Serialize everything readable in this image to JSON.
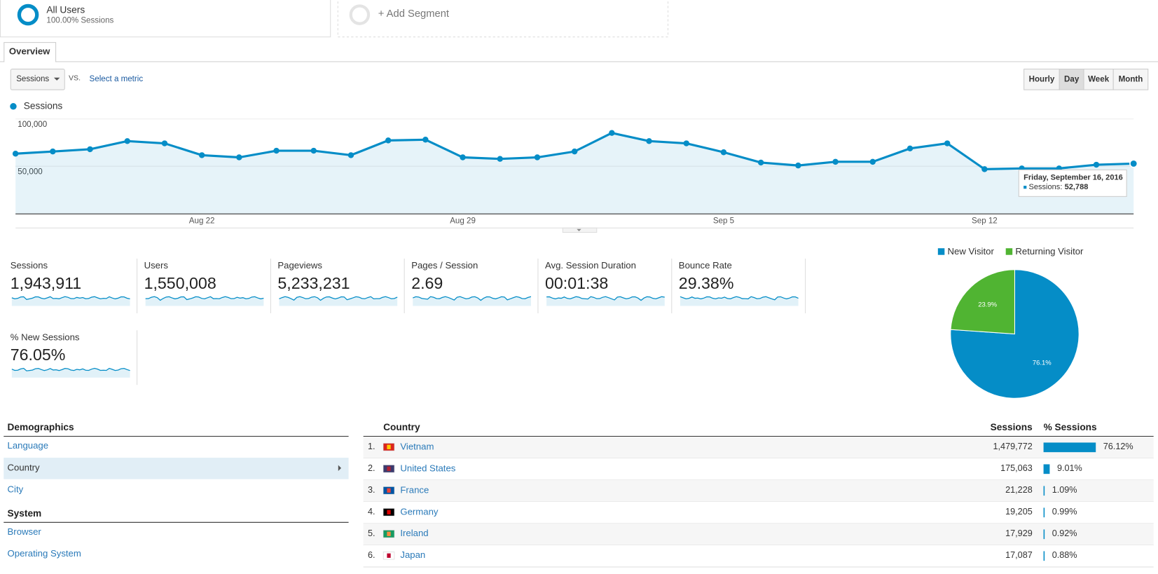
{
  "segments": {
    "primary": {
      "name": "All Users",
      "detail": "100.00% Sessions"
    },
    "add": "+ Add Segment"
  },
  "tab": "Overview",
  "controls": {
    "metric": "Sessions",
    "vs": "VS.",
    "select": "Select a metric",
    "intervals": [
      {
        "label": "Hourly"
      },
      {
        "label": "Day",
        "selected": true
      },
      {
        "label": "Week"
      },
      {
        "label": "Month"
      }
    ]
  },
  "chart_data": [
    {
      "type": "line",
      "legend": "top-left",
      "grid": true,
      "series": [
        {
          "name": "Sessions",
          "color": "#058dc7",
          "values": [
            63300,
            65600,
            68000,
            76600,
            74200,
            61700,
            59400,
            66400,
            66400,
            61700,
            77300,
            78100,
            59400,
            57800,
            59400,
            65600,
            85200,
            76600,
            74200,
            64800,
            53900,
            50800,
            54700,
            54700,
            68800,
            74200,
            46900,
            47700,
            47700,
            51600,
            52788
          ]
        }
      ],
      "categories": [
        null,
        null,
        null,
        null,
        null,
        "Aug 22",
        null,
        null,
        null,
        null,
        null,
        null,
        "Aug 29",
        null,
        null,
        null,
        null,
        null,
        null,
        "Sep 5",
        null,
        null,
        null,
        null,
        null,
        null,
        "Sep 12",
        null,
        null,
        null,
        null
      ],
      "ylim": [
        0,
        100000
      ],
      "yticks": [
        {
          "value": 50000,
          "label": "50,000"
        },
        {
          "value": 100000,
          "label": "100,000"
        }
      ],
      "tooltip": {
        "title": "Friday, September 16, 2016",
        "series": "Sessions:",
        "value_label": "52,788"
      }
    },
    {
      "type": "pie",
      "legend": "top",
      "categories": [
        "New Visitor",
        "Returning Visitor"
      ],
      "values": [
        76.1,
        23.9
      ],
      "value_labels": [
        "76.1%",
        "23.9%"
      ],
      "colors": [
        "#058dc7",
        "#50b432"
      ]
    }
  ],
  "metrics": [
    {
      "label": "Sessions",
      "value": "1,943,911"
    },
    {
      "label": "Users",
      "value": "1,550,008"
    },
    {
      "label": "Pageviews",
      "value": "5,233,231"
    },
    {
      "label": "Pages / Session",
      "value": "2.69"
    },
    {
      "label": "Avg. Session Duration",
      "value": "00:01:38"
    },
    {
      "label": "Bounce Rate",
      "value": "29.38%"
    },
    {
      "label": "% New Sessions",
      "value": "76.05%"
    }
  ],
  "nav": {
    "sections": [
      {
        "title": "Demographics",
        "items": [
          {
            "label": "Language"
          },
          {
            "label": "Country",
            "selected": true
          },
          {
            "label": "City"
          }
        ]
      },
      {
        "title": "System",
        "items": [
          {
            "label": "Browser"
          },
          {
            "label": "Operating System"
          }
        ]
      }
    ]
  },
  "table": {
    "columns": [
      "Country",
      "Sessions",
      "% Sessions"
    ],
    "rows": [
      {
        "rank": "1.",
        "country": "Vietnam",
        "sessions": "1,479,772",
        "share": 76.12,
        "share_label": "76.12%"
      },
      {
        "rank": "2.",
        "country": "United States",
        "sessions": "175,063",
        "share": 9.01,
        "share_label": "9.01%"
      },
      {
        "rank": "3.",
        "country": "France",
        "sessions": "21,228",
        "share": 1.09,
        "share_label": "1.09%"
      },
      {
        "rank": "4.",
        "country": "Germany",
        "sessions": "19,205",
        "share": 0.99,
        "share_label": "0.99%"
      },
      {
        "rank": "5.",
        "country": "Ireland",
        "sessions": "17,929",
        "share": 0.92,
        "share_label": "0.92%"
      },
      {
        "rank": "6.",
        "country": "Japan",
        "sessions": "17,087",
        "share": 0.88,
        "share_label": "0.88%"
      }
    ]
  }
}
